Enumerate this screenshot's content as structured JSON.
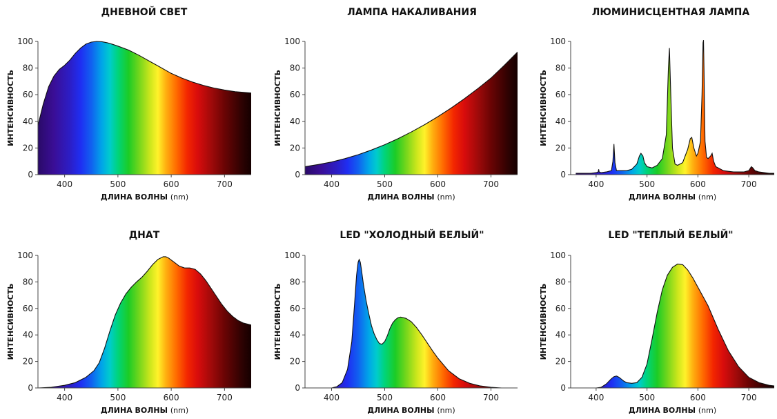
{
  "chart_data": [
    {
      "type": "area",
      "title": "ДНЕВНОЙ СВЕТ",
      "xlabel": "ДЛИНА ВОЛНЫ",
      "xunit": "(nm)",
      "ylabel": "ИНТЕНСИВНОСТЬ",
      "xlim": [
        350,
        750
      ],
      "ylim": [
        0,
        100
      ],
      "xticks": [
        400,
        500,
        600,
        700
      ],
      "yticks": [
        0,
        20,
        40,
        60,
        80,
        100
      ],
      "grid": false,
      "fill": "spectrum",
      "x": [
        350,
        360,
        370,
        380,
        390,
        400,
        410,
        420,
        430,
        440,
        450,
        460,
        470,
        480,
        490,
        500,
        520,
        540,
        560,
        580,
        600,
        620,
        640,
        660,
        680,
        700,
        720,
        740,
        750
      ],
      "y": [
        37,
        53,
        66,
        74,
        79,
        82,
        86,
        91,
        95,
        98,
        99.5,
        100,
        99.8,
        99,
        97.8,
        96.5,
        93.5,
        89.5,
        85,
        80.5,
        76,
        72.5,
        69.5,
        67,
        65,
        63.5,
        62.3,
        61.6,
        61.3
      ]
    },
    {
      "type": "area",
      "title": "ЛАМПА НАКАЛИВАНИЯ",
      "xlabel": "ДЛИНА ВОЛНЫ",
      "xunit": "(nm)",
      "ylabel": "ИНТЕНСИВНОСТЬ",
      "xlim": [
        350,
        750
      ],
      "ylim": [
        0,
        100
      ],
      "xticks": [
        400,
        500,
        600,
        700
      ],
      "yticks": [
        0,
        20,
        40,
        60,
        80,
        100
      ],
      "grid": false,
      "fill": "spectrum",
      "x": [
        350,
        375,
        400,
        425,
        450,
        475,
        500,
        525,
        550,
        575,
        600,
        625,
        650,
        675,
        700,
        725,
        750
      ],
      "y": [
        6,
        7.6,
        9.5,
        12,
        15,
        18.5,
        22.5,
        27,
        32,
        37.5,
        43.5,
        50,
        57,
        64.5,
        72.5,
        82,
        92
      ]
    },
    {
      "type": "area",
      "title": "ЛЮМИНИСЦЕНТНАЯ ЛАМПА",
      "xlabel": "ДЛИНА ВОЛНЫ",
      "xunit": "(nm)",
      "ylabel": "ИНТЕНСИВНОСТЬ",
      "xlim": [
        350,
        750
      ],
      "ylim": [
        0,
        100
      ],
      "xticks": [
        400,
        500,
        600,
        700
      ],
      "yticks": [
        0,
        20,
        40,
        60,
        80,
        100
      ],
      "grid": false,
      "fill": "spectrum",
      "x": [
        360,
        370,
        380,
        390,
        400,
        404,
        405,
        406,
        410,
        420,
        430,
        433,
        435,
        437,
        440,
        450,
        460,
        470,
        480,
        485,
        488,
        492,
        495,
        500,
        510,
        520,
        530,
        538,
        542,
        544,
        546,
        550,
        555,
        560,
        570,
        575,
        580,
        585,
        588,
        592,
        597,
        600,
        605,
        608,
        610,
        611,
        612,
        614,
        617,
        620,
        625,
        628,
        631,
        635,
        640,
        650,
        660,
        670,
        680,
        690,
        700,
        705,
        708,
        712,
        720,
        730,
        740,
        750
      ],
      "y": [
        1,
        1,
        1,
        1,
        1.5,
        2,
        4,
        2,
        1.5,
        2,
        3,
        10,
        23,
        9,
        3,
        3,
        3,
        4,
        8,
        14,
        16,
        14,
        9,
        6,
        5,
        7,
        12,
        30,
        80,
        95,
        70,
        20,
        8,
        7,
        9,
        14,
        19,
        27,
        28,
        20,
        14,
        16,
        25,
        60,
        99,
        101,
        80,
        25,
        13,
        12,
        14,
        16,
        10,
        6,
        5,
        3,
        2.5,
        2,
        2,
        2,
        3,
        6,
        5,
        3,
        2,
        1.5,
        1,
        1
      ]
    },
    {
      "type": "area",
      "title": "ДНАТ",
      "xlabel": "ДЛИНА ВОЛНЫ",
      "xunit": "(nm)",
      "ylabel": "ИНТЕНСИВНОСТЬ",
      "xlim": [
        350,
        750
      ],
      "ylim": [
        0,
        100
      ],
      "xticks": [
        400,
        500,
        600,
        700
      ],
      "yticks": [
        0,
        20,
        40,
        60,
        80,
        100
      ],
      "grid": false,
      "fill": "spectrum",
      "x": [
        350,
        375,
        400,
        420,
        440,
        455,
        465,
        475,
        485,
        495,
        505,
        515,
        525,
        535,
        545,
        555,
        565,
        575,
        585,
        590,
        595,
        605,
        615,
        625,
        635,
        645,
        655,
        665,
        675,
        685,
        695,
        705,
        715,
        725,
        735,
        750
      ],
      "y": [
        0,
        0.5,
        2,
        4,
        8,
        13,
        19,
        30,
        43,
        55,
        64,
        71,
        76,
        80,
        83.5,
        88,
        93,
        97,
        99,
        99,
        98,
        95,
        92,
        90.5,
        90.5,
        89.5,
        86,
        81,
        75,
        69,
        63,
        58,
        54,
        51,
        49,
        47.5
      ]
    },
    {
      "type": "area",
      "title": "LED \"ХОЛОДНЫЙ БЕЛЫЙ\"",
      "xlabel": "ДЛИНА ВОЛНЫ",
      "xunit": "(nm)",
      "ylabel": "ИНТЕНСИВНОСТЬ",
      "xlim": [
        350,
        750
      ],
      "ylim": [
        0,
        100
      ],
      "xticks": [
        400,
        500,
        600,
        700
      ],
      "yticks": [
        0,
        20,
        40,
        60,
        80,
        100
      ],
      "grid": false,
      "fill": "spectrum",
      "x": [
        370,
        400,
        410,
        420,
        430,
        438,
        443,
        447,
        450,
        452,
        454,
        456,
        460,
        465,
        470,
        475,
        480,
        485,
        490,
        495,
        500,
        505,
        510,
        515,
        520,
        525,
        530,
        540,
        550,
        560,
        570,
        580,
        590,
        600,
        620,
        640,
        660,
        680,
        700,
        720,
        750
      ],
      "y": [
        0,
        0,
        1,
        4,
        14,
        35,
        62,
        85,
        95,
        97,
        95,
        90,
        78,
        66,
        56,
        47,
        41,
        36.5,
        33.5,
        33,
        35,
        39.5,
        45,
        49,
        51.5,
        53,
        53.5,
        52.5,
        50,
        45.5,
        40,
        34,
        28,
        22.5,
        13,
        7,
        3.5,
        1.5,
        0.5,
        0,
        0
      ]
    },
    {
      "type": "area",
      "title": "LED \"ТЕПЛЫЙ БЕЛЫЙ\"",
      "xlabel": "ДЛИНА ВОЛНЫ",
      "xunit": "(nm)",
      "ylabel": "ИНТЕНСИВНОСТЬ",
      "xlim": [
        350,
        750
      ],
      "ylim": [
        0,
        100
      ],
      "xticks": [
        400,
        500,
        600,
        700
      ],
      "yticks": [
        0,
        20,
        40,
        60,
        80,
        100
      ],
      "grid": false,
      "fill": "spectrum",
      "x": [
        400,
        410,
        420,
        430,
        435,
        440,
        445,
        450,
        455,
        460,
        470,
        480,
        490,
        500,
        510,
        520,
        530,
        540,
        550,
        560,
        570,
        580,
        590,
        600,
        620,
        640,
        660,
        680,
        700,
        720,
        740,
        750
      ],
      "y": [
        0,
        0.5,
        3,
        7,
        8.5,
        9,
        8,
        6.5,
        5,
        4,
        3.5,
        4,
        8,
        18,
        37,
        57,
        74,
        85,
        91,
        93.5,
        93,
        89,
        83,
        76,
        62,
        44,
        28,
        16,
        8,
        4,
        2,
        1.5
      ]
    }
  ]
}
